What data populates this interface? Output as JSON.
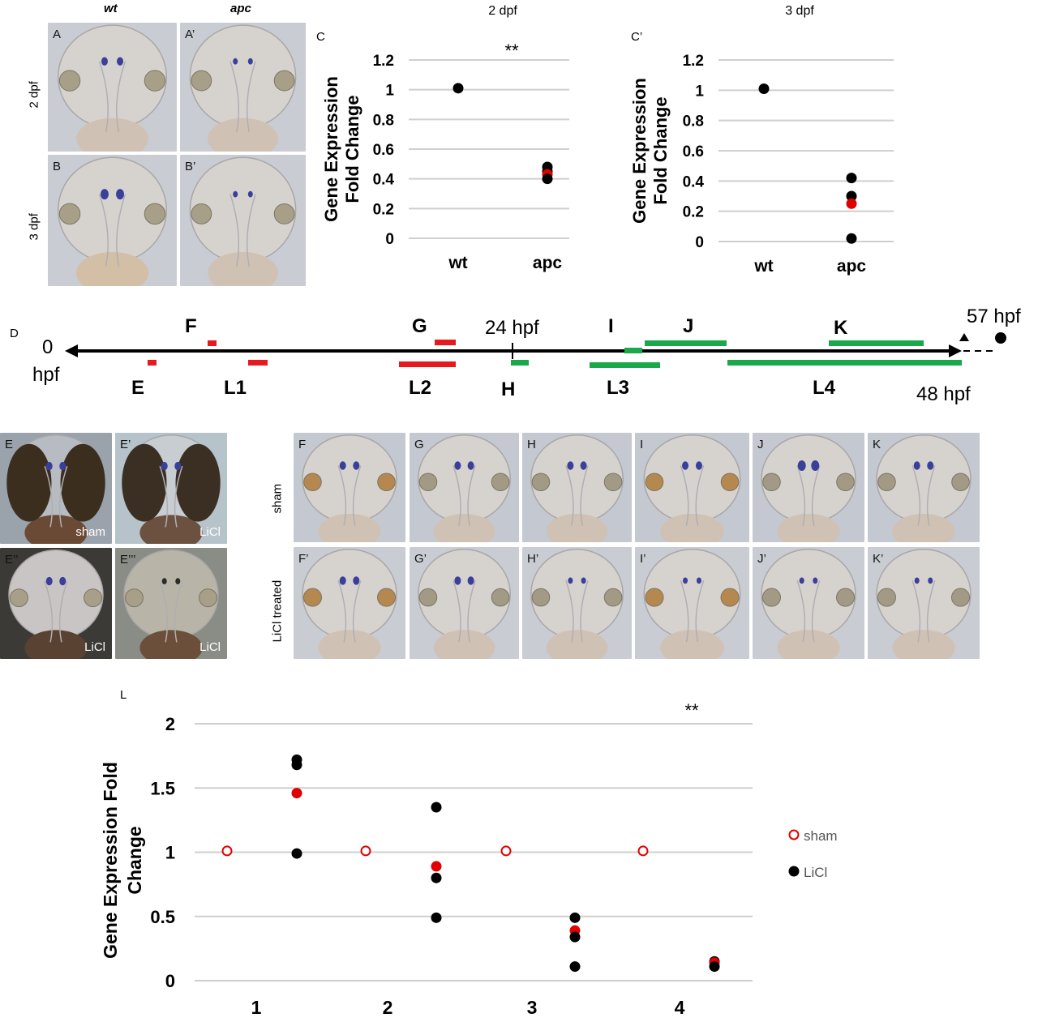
{
  "top_images": {
    "col_wt": "wt",
    "col_apc": "apc",
    "row_2dpf": "2 dpf",
    "row_3dpf": "3 dpf",
    "labels": [
      "A",
      "A’",
      "B",
      "B’"
    ]
  },
  "panel_C_label": "C",
  "panel_C2_label": "C’",
  "panel_D_label": "D",
  "panel_L_label": "L",
  "timeline": {
    "start": "0",
    "start_unit": "hpf",
    "mark_24": "24 hpf",
    "end_48": "48 hpf",
    "end_57": "57 hpf",
    "above_labels": [
      "F",
      "G",
      "I",
      "J",
      "K"
    ],
    "below_labels": [
      "E",
      "L1",
      "L2",
      "H",
      "L3",
      "L4"
    ]
  },
  "bottom_left_images": {
    "labels": [
      "E",
      "E’",
      "E’’",
      "E’’’"
    ],
    "inside": [
      "sham",
      "LiCl",
      "LiCl",
      "LiCl"
    ]
  },
  "bottom_right_images": {
    "row_sham": "sham",
    "row_licl": "LiCl treated",
    "top_labels": [
      "F",
      "G",
      "H",
      "I",
      "J",
      "K"
    ],
    "bottom_labels": [
      "F’",
      "G’",
      "H’",
      "I’",
      "J’",
      "K’"
    ]
  },
  "chart_data": [
    {
      "id": "C",
      "type": "scatter",
      "title": "2 dpf",
      "ylabel": "Gene Expression Fold Change",
      "categories": [
        "wt",
        "apc"
      ],
      "ylim": [
        0,
        1.2
      ],
      "yticks": [
        "0",
        "0.2",
        "0.4",
        "0.6",
        "0.8",
        "1",
        "1.2"
      ],
      "annotation": "**",
      "points": [
        {
          "category": "wt",
          "y": 1.01,
          "color": "#000000"
        },
        {
          "category": "apc",
          "y": 0.48,
          "color": "#000000"
        },
        {
          "category": "apc",
          "y": 0.45,
          "color": "#000000"
        },
        {
          "category": "apc",
          "y": 0.43,
          "color": "#e00000"
        },
        {
          "category": "apc",
          "y": 0.4,
          "color": "#000000"
        }
      ]
    },
    {
      "id": "C2",
      "type": "scatter",
      "title": "3 dpf",
      "ylabel": "Gene Expression Fold Change",
      "categories": [
        "wt",
        "apc"
      ],
      "ylim": [
        0,
        1.2
      ],
      "yticks": [
        "0",
        "0.2",
        "0.4",
        "0.6",
        "0.8",
        "1",
        "1.2"
      ],
      "points": [
        {
          "category": "wt",
          "y": 1.01,
          "color": "#000000"
        },
        {
          "category": "apc",
          "y": 0.42,
          "color": "#000000"
        },
        {
          "category": "apc",
          "y": 0.3,
          "color": "#000000"
        },
        {
          "category": "apc",
          "y": 0.25,
          "color": "#e00000"
        },
        {
          "category": "apc",
          "y": 0.02,
          "color": "#000000"
        }
      ]
    },
    {
      "id": "L",
      "type": "scatter",
      "ylabel": "Gene Expression Fold Change",
      "categories": [
        "1",
        "2",
        "3",
        "4"
      ],
      "ylim": [
        0,
        2
      ],
      "yticks": [
        "0",
        "0.5",
        "1",
        "1.5",
        "2"
      ],
      "annotation": "**",
      "legend": [
        "sham",
        "LiCl"
      ],
      "sham": [
        1.01,
        1.01,
        1.01,
        1.01
      ],
      "licl": [
        {
          "category": "1",
          "y": 1.72,
          "color": "#000000"
        },
        {
          "category": "1",
          "y": 1.68,
          "color": "#000000"
        },
        {
          "category": "1",
          "y": 1.46,
          "color": "#e00000"
        },
        {
          "category": "1",
          "y": 0.99,
          "color": "#000000"
        },
        {
          "category": "2",
          "y": 1.35,
          "color": "#000000"
        },
        {
          "category": "2",
          "y": 0.89,
          "color": "#e00000"
        },
        {
          "category": "2",
          "y": 0.8,
          "color": "#000000"
        },
        {
          "category": "2",
          "y": 0.49,
          "color": "#000000"
        },
        {
          "category": "3",
          "y": 0.49,
          "color": "#000000"
        },
        {
          "category": "3",
          "y": 0.39,
          "color": "#e00000"
        },
        {
          "category": "3",
          "y": 0.34,
          "color": "#000000"
        },
        {
          "category": "3",
          "y": 0.11,
          "color": "#000000"
        },
        {
          "category": "4",
          "y": 0.15,
          "color": "#000000"
        },
        {
          "category": "4",
          "y": 0.14,
          "color": "#e00000"
        },
        {
          "category": "4",
          "y": 0.11,
          "color": "#000000"
        }
      ]
    }
  ]
}
